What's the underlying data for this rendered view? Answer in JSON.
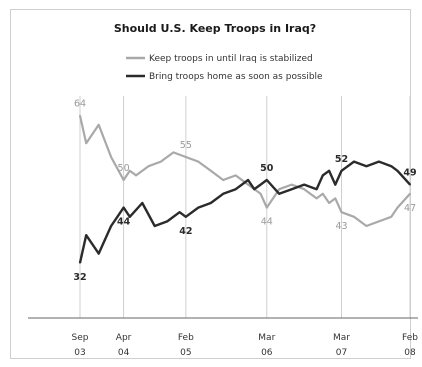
{
  "chart_data": {
    "type": "line",
    "title": "Should U.S. Keep Troops in Iraq?",
    "xlabel": "",
    "ylabel": "",
    "ylim": [
      20,
      70
    ],
    "grid": false,
    "legend_position": "top-center",
    "x_ticks": [
      {
        "month": "Sep",
        "year": "03",
        "date": "2003-09"
      },
      {
        "month": "Apr",
        "year": "04",
        "date": "2004-04"
      },
      {
        "month": "Feb",
        "year": "05",
        "date": "2005-02"
      },
      {
        "month": "Mar",
        "year": "06",
        "date": "2006-03"
      },
      {
        "month": "Mar",
        "year": "07",
        "date": "2007-03"
      },
      {
        "month": "Feb",
        "year": "08",
        "date": "2008-02"
      }
    ],
    "series": [
      {
        "name": "Keep troops in until Iraq is stabilized",
        "color": "#a9a9a9",
        "points": [
          [
            "2003-09",
            64
          ],
          [
            "2003-10",
            58
          ],
          [
            "2003-12",
            62
          ],
          [
            "2004-02",
            55
          ],
          [
            "2004-04",
            50
          ],
          [
            "2004-05",
            52
          ],
          [
            "2004-06",
            51
          ],
          [
            "2004-08",
            53
          ],
          [
            "2004-10",
            54
          ],
          [
            "2004-12",
            56
          ],
          [
            "2005-02",
            55
          ],
          [
            "2005-04",
            54
          ],
          [
            "2005-06",
            52
          ],
          [
            "2005-08",
            50
          ],
          [
            "2005-10",
            51
          ],
          [
            "2005-12",
            49
          ],
          [
            "2006-02",
            47
          ],
          [
            "2006-03",
            44
          ],
          [
            "2006-05",
            48
          ],
          [
            "2006-07",
            49
          ],
          [
            "2006-09",
            48
          ],
          [
            "2006-11",
            46
          ],
          [
            "2006-12",
            47
          ],
          [
            "2007-01",
            45
          ],
          [
            "2007-02",
            46
          ],
          [
            "2007-03",
            43
          ],
          [
            "2007-05",
            42
          ],
          [
            "2007-07",
            40
          ],
          [
            "2007-09",
            41
          ],
          [
            "2007-11",
            42
          ],
          [
            "2007-12",
            44
          ],
          [
            "2008-02",
            47
          ]
        ]
      },
      {
        "name": "Bring troops home as soon as possible",
        "color": "#2b2b2b",
        "points": [
          [
            "2003-09",
            32
          ],
          [
            "2003-10",
            38
          ],
          [
            "2003-12",
            34
          ],
          [
            "2004-02",
            40
          ],
          [
            "2004-03",
            42
          ],
          [
            "2004-04",
            44
          ],
          [
            "2004-05",
            42
          ],
          [
            "2004-07",
            45
          ],
          [
            "2004-09",
            40
          ],
          [
            "2004-11",
            41
          ],
          [
            "2005-01",
            43
          ],
          [
            "2005-02",
            42
          ],
          [
            "2005-04",
            44
          ],
          [
            "2005-06",
            45
          ],
          [
            "2005-08",
            47
          ],
          [
            "2005-10",
            48
          ],
          [
            "2005-12",
            50
          ],
          [
            "2006-01",
            48
          ],
          [
            "2006-02",
            49
          ],
          [
            "2006-03",
            50
          ],
          [
            "2006-05",
            47
          ],
          [
            "2006-07",
            48
          ],
          [
            "2006-09",
            49
          ],
          [
            "2006-11",
            48
          ],
          [
            "2006-12",
            51
          ],
          [
            "2007-01",
            52
          ],
          [
            "2007-02",
            49
          ],
          [
            "2007-03",
            52
          ],
          [
            "2007-05",
            54
          ],
          [
            "2007-07",
            53
          ],
          [
            "2007-09",
            54
          ],
          [
            "2007-11",
            53
          ],
          [
            "2007-12",
            52
          ],
          [
            "2008-02",
            49
          ]
        ]
      }
    ],
    "data_labels": [
      {
        "series": 0,
        "date": "2003-09",
        "value": "64"
      },
      {
        "series": 0,
        "date": "2004-04",
        "value": "50"
      },
      {
        "series": 0,
        "date": "2005-02",
        "value": "55"
      },
      {
        "series": 0,
        "date": "2006-03",
        "value": "44"
      },
      {
        "series": 0,
        "date": "2007-03",
        "value": "43"
      },
      {
        "series": 0,
        "date": "2008-02",
        "value": "47"
      },
      {
        "series": 1,
        "date": "2003-09",
        "value": "32"
      },
      {
        "series": 1,
        "date": "2004-04",
        "value": "44"
      },
      {
        "series": 1,
        "date": "2005-02",
        "value": "42"
      },
      {
        "series": 1,
        "date": "2006-03",
        "value": "50"
      },
      {
        "series": 1,
        "date": "2007-03",
        "value": "52"
      },
      {
        "series": 1,
        "date": "2008-02",
        "value": "49"
      }
    ]
  }
}
